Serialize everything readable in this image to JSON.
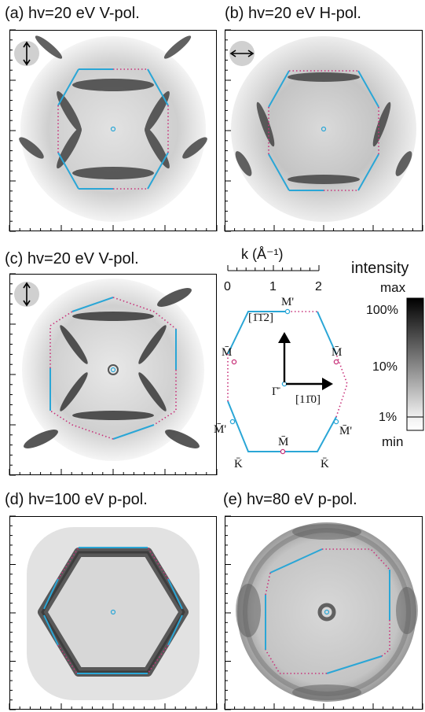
{
  "panels": {
    "a": {
      "title": "(a) hv=20 eV V-pol.",
      "pol": "vertical"
    },
    "b": {
      "title": "(b) hv=20 eV H-pol.",
      "pol": "horizontal"
    },
    "c": {
      "title": "(c) hv=20 eV V-pol.",
      "pol": "vertical"
    },
    "d": {
      "title": "(d) hv=100 eV p-pol."
    },
    "e": {
      "title": "(e) hv=80 eV p-pol."
    }
  },
  "scale": {
    "label": "k (Å⁻¹)",
    "ticks": [
      "0",
      "1",
      "2"
    ]
  },
  "bz": {
    "m_top": "M̄'",
    "m_left": "M̄",
    "m_right": "M̄",
    "m_bottom_left": "M̄'",
    "m_bottom_right": "M̄'",
    "m_bottom": "M̄",
    "gamma": "Γ̄",
    "k_left": "K̄",
    "k_right": "K̄",
    "dir_up": "[1̄1̄2]",
    "dir_right": "[11̄0]"
  },
  "intensity": {
    "title": "intensity",
    "max": "max",
    "min": "min",
    "ticks": [
      "100%",
      "10%",
      "1%"
    ]
  },
  "colors": {
    "solid_edge": "#2aa6d6",
    "dotted_edge": "#c8327a"
  }
}
